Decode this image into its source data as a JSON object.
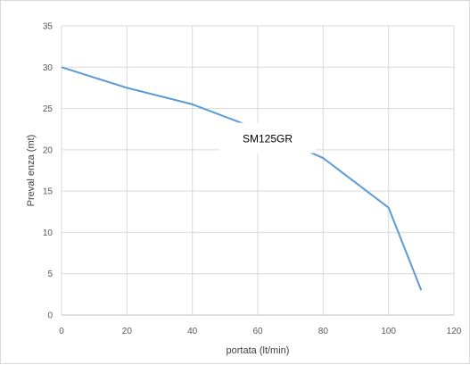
{
  "chart_data": {
    "type": "line",
    "xlabel": "portata (lt/min)",
    "ylabel": "Preval enza (mt)",
    "xlim": [
      0,
      120
    ],
    "ylim": [
      0,
      35
    ],
    "xticks": [
      0,
      20,
      40,
      60,
      80,
      100,
      120
    ],
    "yticks": [
      0,
      5,
      10,
      15,
      20,
      25,
      30,
      35
    ],
    "grid": true,
    "series": [
      {
        "name": "SM125GR",
        "color": "#5b9bd5",
        "x": [
          0,
          20,
          40,
          60,
          80,
          100,
          110
        ],
        "y": [
          30,
          27.5,
          25.5,
          22.5,
          19,
          13,
          3
        ]
      }
    ],
    "annotations": [
      {
        "text": "SM125GR",
        "x": 63,
        "y": 21
      }
    ]
  }
}
